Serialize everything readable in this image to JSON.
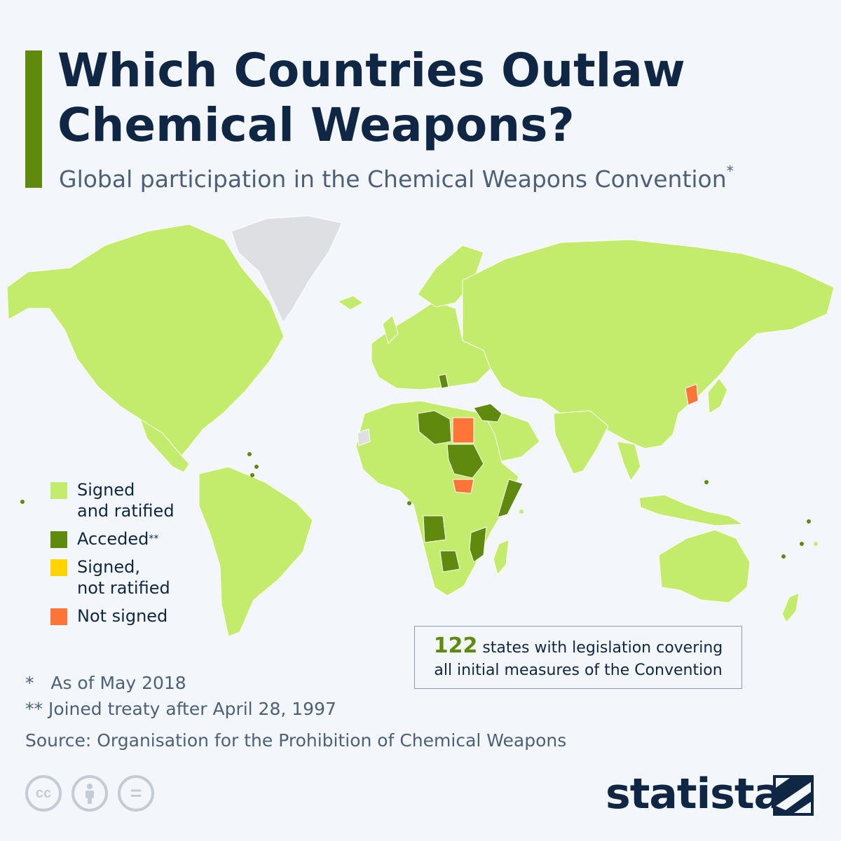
{
  "header": {
    "title": "Which Countries Outlaw Chemical Weapons?",
    "subtitle": "Global participation in the Chemical Weapons Convention",
    "subtitle_mark": "*"
  },
  "legend": {
    "items": [
      {
        "label": "Signed\nand ratified",
        "color": "#c3ec6c",
        "mark": ""
      },
      {
        "label": "Acceded",
        "color": "#5f8a0e",
        "mark": "**"
      },
      {
        "label": "Signed,\nnot ratified",
        "color": "#ffd400",
        "mark": ""
      },
      {
        "label": "Not signed",
        "color": "#ff7437",
        "mark": ""
      }
    ]
  },
  "map": {
    "colors": {
      "signed_ratified": "#c3ec6c",
      "acceded": "#5f8a0e",
      "not_signed": "#ff7437",
      "no_data": "#dedfe2",
      "border": "#ffffff"
    }
  },
  "callout": {
    "number": "122",
    "line1": "states with legislation covering",
    "line2": "all initial measures of the Convention"
  },
  "notes": {
    "note1": "*   As of May 2018",
    "note2": "** Joined treaty after April 28, 1997",
    "source": "Source: Organisation for the Prohibition of Chemical Weapons"
  },
  "footer": {
    "icons": [
      "cc-icon",
      "attribution-icon",
      "no-derivatives-icon"
    ],
    "cc_text": "cc",
    "nd_text": "=",
    "brand": "statista"
  }
}
